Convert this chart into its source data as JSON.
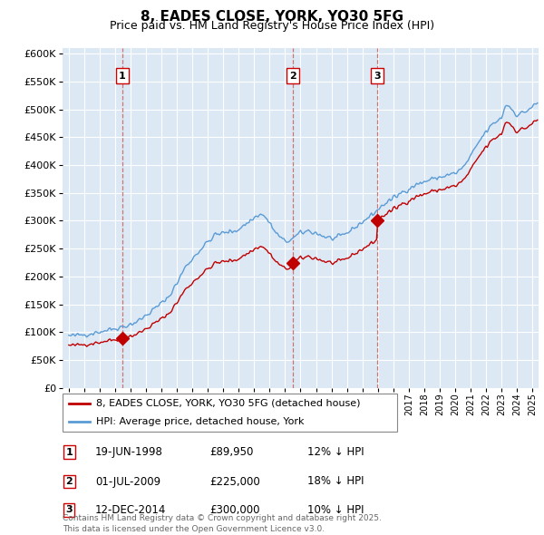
{
  "title": "8, EADES CLOSE, YORK, YO30 5FG",
  "subtitle": "Price paid vs. HM Land Registry's House Price Index (HPI)",
  "legend_line1": "8, EADES CLOSE, YORK, YO30 5FG (detached house)",
  "legend_line2": "HPI: Average price, detached house, York",
  "transactions": [
    {
      "num": 1,
      "date": "19-JUN-1998",
      "price": 89950,
      "year": 1998.46,
      "pct": "12% ↓ HPI"
    },
    {
      "num": 2,
      "date": "01-JUL-2009",
      "price": 225000,
      "year": 2009.5,
      "pct": "18% ↓ HPI"
    },
    {
      "num": 3,
      "date": "12-DEC-2014",
      "price": 300000,
      "year": 2014.95,
      "pct": "10% ↓ HPI"
    }
  ],
  "footer": "Contains HM Land Registry data © Crown copyright and database right 2025.\nThis data is licensed under the Open Government Licence v3.0.",
  "hpi_color": "#5b9bd5",
  "price_color": "#c00000",
  "vline_color": "#cc6666",
  "chart_bg": "#dce9f5",
  "ylim_max": 610000,
  "ytick_step": 50000,
  "xmin": 1994.6,
  "xmax": 2025.4
}
